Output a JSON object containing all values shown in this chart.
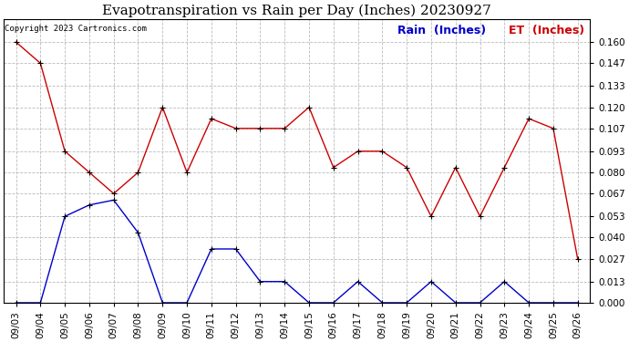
{
  "title": "Evapotranspiration vs Rain per Day (Inches) 20230927",
  "copyright": "Copyright 2023 Cartronics.com",
  "legend_rain": "Rain  (Inches)",
  "legend_et": "ET  (Inches)",
  "x_labels": [
    "09/03",
    "09/04",
    "09/05",
    "09/06",
    "09/07",
    "09/08",
    "09/09",
    "09/10",
    "09/11",
    "09/12",
    "09/13",
    "09/14",
    "09/15",
    "09/16",
    "09/17",
    "09/18",
    "09/19",
    "09/20",
    "09/21",
    "09/22",
    "09/23",
    "09/24",
    "09/25",
    "09/26"
  ],
  "et_values": [
    0.16,
    0.147,
    0.093,
    0.08,
    0.067,
    0.08,
    0.12,
    0.08,
    0.113,
    0.107,
    0.107,
    0.107,
    0.12,
    0.083,
    0.093,
    0.093,
    0.083,
    0.053,
    0.083,
    0.053,
    0.083,
    0.113,
    0.107,
    0.027
  ],
  "rain_values": [
    0.0,
    0.0,
    0.053,
    0.06,
    0.063,
    0.043,
    0.0,
    0.0,
    0.033,
    0.033,
    0.013,
    0.013,
    0.0,
    0.0,
    0.013,
    0.0,
    0.0,
    0.013,
    0.0,
    0.0,
    0.013,
    0.0,
    0.0,
    0.0
  ],
  "et_color": "#cc0000",
  "rain_color": "#0000cc",
  "background_color": "#ffffff",
  "grid_color": "#bbbbbb",
  "ylim": [
    0.0,
    0.174
  ],
  "yticks": [
    0.0,
    0.013,
    0.027,
    0.04,
    0.053,
    0.067,
    0.08,
    0.093,
    0.107,
    0.12,
    0.133,
    0.147,
    0.16
  ],
  "title_fontsize": 11,
  "legend_fontsize": 9,
  "tick_fontsize": 7.5,
  "copyright_fontsize": 6.5
}
